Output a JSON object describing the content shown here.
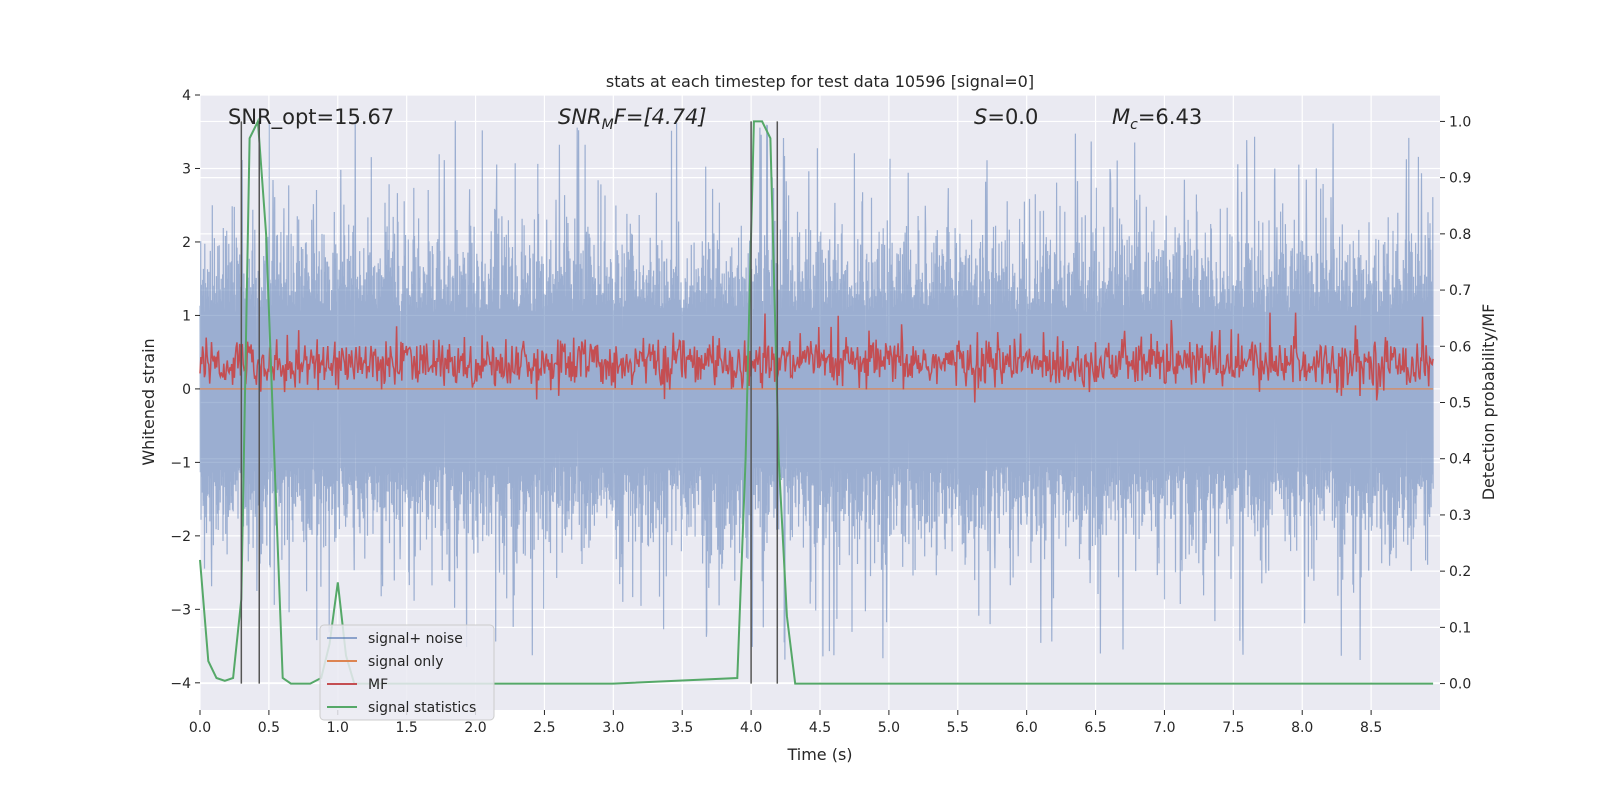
{
  "chart_data": {
    "type": "line",
    "title": "stats at each timestep for test data 10596 [signal=0]",
    "xlabel": "Time (s)",
    "ylabel": "Whitened strain",
    "y2label": "Detection probability/MF",
    "xlim": [
      0,
      9.0
    ],
    "ylim": [
      -4.37,
      4.0
    ],
    "y2lim": [
      -0.047,
      1.047
    ],
    "x_ticks": [
      "0.0",
      "0.5",
      "1.0",
      "1.5",
      "2.0",
      "2.5",
      "3.0",
      "3.5",
      "4.0",
      "4.5",
      "5.0",
      "5.5",
      "6.0",
      "6.5",
      "7.0",
      "7.5",
      "8.0",
      "8.5"
    ],
    "y_ticks": [
      "4",
      "3",
      "2",
      "1",
      "0",
      "−1",
      "−2",
      "−3",
      "−4"
    ],
    "y2_ticks": [
      "1.0",
      "0.9",
      "0.8",
      "0.7",
      "0.6",
      "0.5",
      "0.4",
      "0.3",
      "0.2",
      "0.1",
      "0.0"
    ],
    "grid": true,
    "legend_position": "lower-left",
    "annotations": {
      "snr_opt": "SNR_opt=15.67",
      "snr_mf_pre": "SNR",
      "snr_mf_sub": "M",
      "snr_mf_post": "F=[4.74]",
      "s_pre": "S",
      "s_post": "=0.0",
      "mc_pre": "M",
      "mc_sub": "c",
      "mc_post": "=6.43"
    },
    "vertical_markers_s": [
      0.3,
      0.43,
      4.0,
      4.19
    ],
    "series": [
      {
        "name": "signal+ noise",
        "color": "#4c72b0",
        "axis": "left",
        "description_values": "noise band about ±1.4 with spikes up to ~3.6 and down to ~-4.0",
        "band": [
          -1.4,
          1.4
        ]
      },
      {
        "name": "signal only",
        "color": "#dd8452",
        "axis": "left",
        "values_constant": 0
      },
      {
        "name": "MF",
        "color": "#c44e52",
        "axis": "right",
        "band": [
          0.52,
          0.62
        ]
      },
      {
        "name": "signal statistics",
        "color": "#55a868",
        "axis": "right",
        "x": [
          0.0,
          0.06,
          0.12,
          0.18,
          0.24,
          0.3,
          0.36,
          0.42,
          0.48,
          0.54,
          0.6,
          0.66,
          0.72,
          0.8,
          0.88,
          0.94,
          1.0,
          1.06,
          1.12,
          1.18,
          1.3,
          2.0,
          3.0,
          3.9,
          3.96,
          4.02,
          4.08,
          4.14,
          4.2,
          4.26,
          4.32,
          4.4,
          5.0,
          6.0,
          7.0,
          8.0,
          8.95
        ],
        "values": [
          0.22,
          0.04,
          0.01,
          0.005,
          0.01,
          0.15,
          0.97,
          1.0,
          0.8,
          0.4,
          0.01,
          0.0,
          0.0,
          0.0,
          0.01,
          0.07,
          0.18,
          0.05,
          0.0,
          0.0,
          0.0,
          0.0,
          0.0,
          0.01,
          0.4,
          1.0,
          1.0,
          0.97,
          0.4,
          0.12,
          0.0,
          0.0,
          0.0,
          0.0,
          0.0,
          0.0,
          0.0
        ]
      }
    ]
  }
}
